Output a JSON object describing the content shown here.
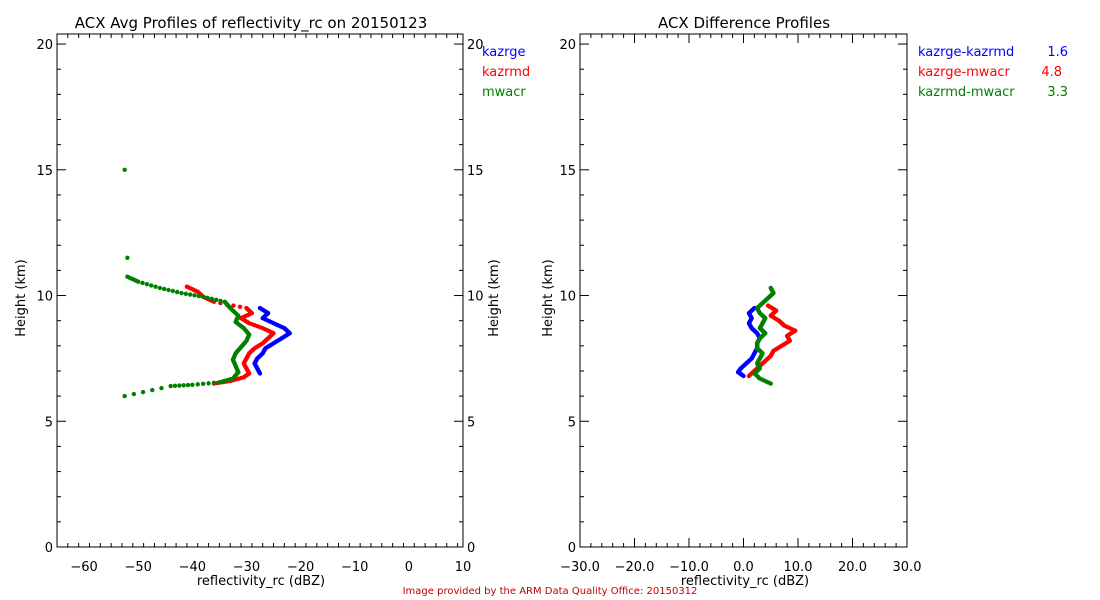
{
  "chart_data": [
    {
      "type": "scatter",
      "title": "ACX Avg Profiles of reflectivity_rc on 20150123",
      "xlabel": "reflectivity_rc (dBZ)",
      "ylabel": "Height (km)",
      "ylabel_right": "Height (km)",
      "xlim": [
        -65,
        10
      ],
      "ylim": [
        0,
        20.4
      ],
      "xticks": [
        -60,
        -50,
        -40,
        -30,
        -20,
        -10,
        0,
        10
      ],
      "xtick_labels": [
        "−60",
        "−50",
        "−40",
        "−30",
        "−20",
        "−10",
        "0",
        "10"
      ],
      "yticks": [
        0,
        5,
        10,
        15,
        20
      ],
      "ytick_labels": [
        "0",
        "5",
        "10",
        "15",
        "20"
      ],
      "grid": false,
      "legend": [
        {
          "name": "kazrge",
          "color": "#0000ff"
        },
        {
          "name": "kazrmd",
          "color": "#ff0000"
        },
        {
          "name": "mwacr",
          "color": "#008000"
        }
      ],
      "series": [
        {
          "name": "kazrge",
          "color": "#0000ff",
          "points": [
            [
              -27.5,
              6.9
            ],
            [
              -28,
              7.1
            ],
            [
              -28.5,
              7.3
            ],
            [
              -28,
              7.5
            ],
            [
              -27,
              7.7
            ],
            [
              -26.5,
              7.9
            ],
            [
              -25,
              8.1
            ],
            [
              -23.5,
              8.3
            ],
            [
              -22,
              8.5
            ],
            [
              -23,
              8.7
            ],
            [
              -25,
              8.9
            ],
            [
              -27,
              9.1
            ],
            [
              -26,
              9.3
            ],
            [
              -27.5,
              9.5
            ]
          ]
        },
        {
          "name": "kazrmd",
          "color": "#ff0000",
          "points": [
            [
              -36,
              6.5
            ],
            [
              -33,
              6.6
            ],
            [
              -30.5,
              6.75
            ],
            [
              -29.5,
              6.9
            ],
            [
              -30,
              7.1
            ],
            [
              -30.5,
              7.3
            ],
            [
              -30,
              7.5
            ],
            [
              -29.5,
              7.7
            ],
            [
              -28.5,
              7.9
            ],
            [
              -27,
              8.1
            ],
            [
              -26,
              8.3
            ],
            [
              -25,
              8.5
            ],
            [
              -27,
              8.7
            ],
            [
              -29.5,
              8.9
            ],
            [
              -31,
              9.1
            ],
            [
              -29,
              9.3
            ],
            [
              -30,
              9.5
            ],
            [
              -36,
              9.75
            ],
            [
              -38,
              9.95
            ],
            [
              -39,
              10.15
            ],
            [
              -41,
              10.35
            ]
          ]
        },
        {
          "name": "mwacr",
          "color": "#008000",
          "points": [
            [
              -52.5,
              6.0
            ],
            [
              -44,
              6.4
            ],
            [
              -40,
              6.45
            ],
            [
              -35,
              6.55
            ],
            [
              -32.5,
              6.7
            ],
            [
              -31.5,
              6.95
            ],
            [
              -32,
              7.2
            ],
            [
              -32.5,
              7.45
            ],
            [
              -32,
              7.7
            ],
            [
              -31,
              7.95
            ],
            [
              -30,
              8.2
            ],
            [
              -29.5,
              8.45
            ],
            [
              -30.5,
              8.7
            ],
            [
              -32,
              8.95
            ],
            [
              -31.5,
              9.2
            ],
            [
              -33,
              9.5
            ],
            [
              -34,
              9.75
            ],
            [
              -38,
              9.95
            ],
            [
              -42,
              10.1
            ],
            [
              -46,
              10.3
            ],
            [
              -50,
              10.55
            ],
            [
              -52,
              10.75
            ],
            [
              -52,
              11.5
            ],
            [
              -52.5,
              15.0
            ]
          ]
        }
      ]
    },
    {
      "type": "scatter",
      "title": "ACX Difference Profiles",
      "xlabel": "reflectivity_rc (dBZ)",
      "ylabel": "Height (km)",
      "xlim": [
        -30,
        30
      ],
      "ylim": [
        0,
        20.4
      ],
      "xticks": [
        -30,
        -20,
        -10,
        0,
        10,
        20,
        30
      ],
      "xtick_labels": [
        "−30.0",
        "−20.0",
        "−10.0",
        "0.0",
        "10.0",
        "20.0",
        "30.0"
      ],
      "yticks": [
        0,
        5,
        10,
        15,
        20
      ],
      "ytick_labels": [
        "0",
        "5",
        "10",
        "15",
        "20"
      ],
      "grid": false,
      "legend": [
        {
          "name": "kazrge-kazrmd",
          "value": "1.6",
          "color": "#0000ff"
        },
        {
          "name": "kazrge-mwacr",
          "value": "4.8",
          "color": "#ff0000"
        },
        {
          "name": "kazrmd-mwacr",
          "value": "3.3",
          "color": "#008000"
        }
      ],
      "series": [
        {
          "name": "kazrge-kazrmd",
          "color": "#0000ff",
          "points": [
            [
              0,
              6.8
            ],
            [
              -1,
              6.95
            ],
            [
              -0.5,
              7.1
            ],
            [
              0.5,
              7.3
            ],
            [
              1.5,
              7.5
            ],
            [
              2,
              7.7
            ],
            [
              2.5,
              7.9
            ],
            [
              2.5,
              8.1
            ],
            [
              3,
              8.3
            ],
            [
              2.5,
              8.5
            ],
            [
              1.5,
              8.7
            ],
            [
              1,
              8.9
            ],
            [
              1.5,
              9.1
            ],
            [
              1,
              9.3
            ],
            [
              2,
              9.5
            ]
          ]
        },
        {
          "name": "kazrge-mwacr",
          "color": "#ff0000",
          "points": [
            [
              1,
              6.8
            ],
            [
              2,
              7.0
            ],
            [
              3,
              7.2
            ],
            [
              4,
              7.4
            ],
            [
              5,
              7.6
            ],
            [
              5.5,
              7.8
            ],
            [
              7,
              8.0
            ],
            [
              8.5,
              8.2
            ],
            [
              8,
              8.4
            ],
            [
              9.5,
              8.6
            ],
            [
              7.5,
              8.8
            ],
            [
              6.5,
              9.0
            ],
            [
              5,
              9.2
            ],
            [
              6,
              9.4
            ],
            [
              4.5,
              9.6
            ]
          ]
        },
        {
          "name": "kazrmd-mwacr",
          "color": "#008000",
          "points": [
            [
              5,
              6.5
            ],
            [
              3,
              6.7
            ],
            [
              2,
              6.9
            ],
            [
              3,
              7.1
            ],
            [
              2.5,
              7.3
            ],
            [
              3,
              7.5
            ],
            [
              3.5,
              7.7
            ],
            [
              2.5,
              7.9
            ],
            [
              2.5,
              8.1
            ],
            [
              3,
              8.3
            ],
            [
              4,
              8.5
            ],
            [
              3,
              8.7
            ],
            [
              3.5,
              8.9
            ],
            [
              4,
              9.1
            ],
            [
              3,
              9.3
            ],
            [
              2.5,
              9.5
            ],
            [
              3.5,
              9.7
            ],
            [
              4.5,
              9.9
            ],
            [
              5.5,
              10.1
            ],
            [
              5,
              10.3
            ]
          ]
        }
      ]
    }
  ],
  "footer": "Image provided by the ARM Data Quality Office: 20150312"
}
